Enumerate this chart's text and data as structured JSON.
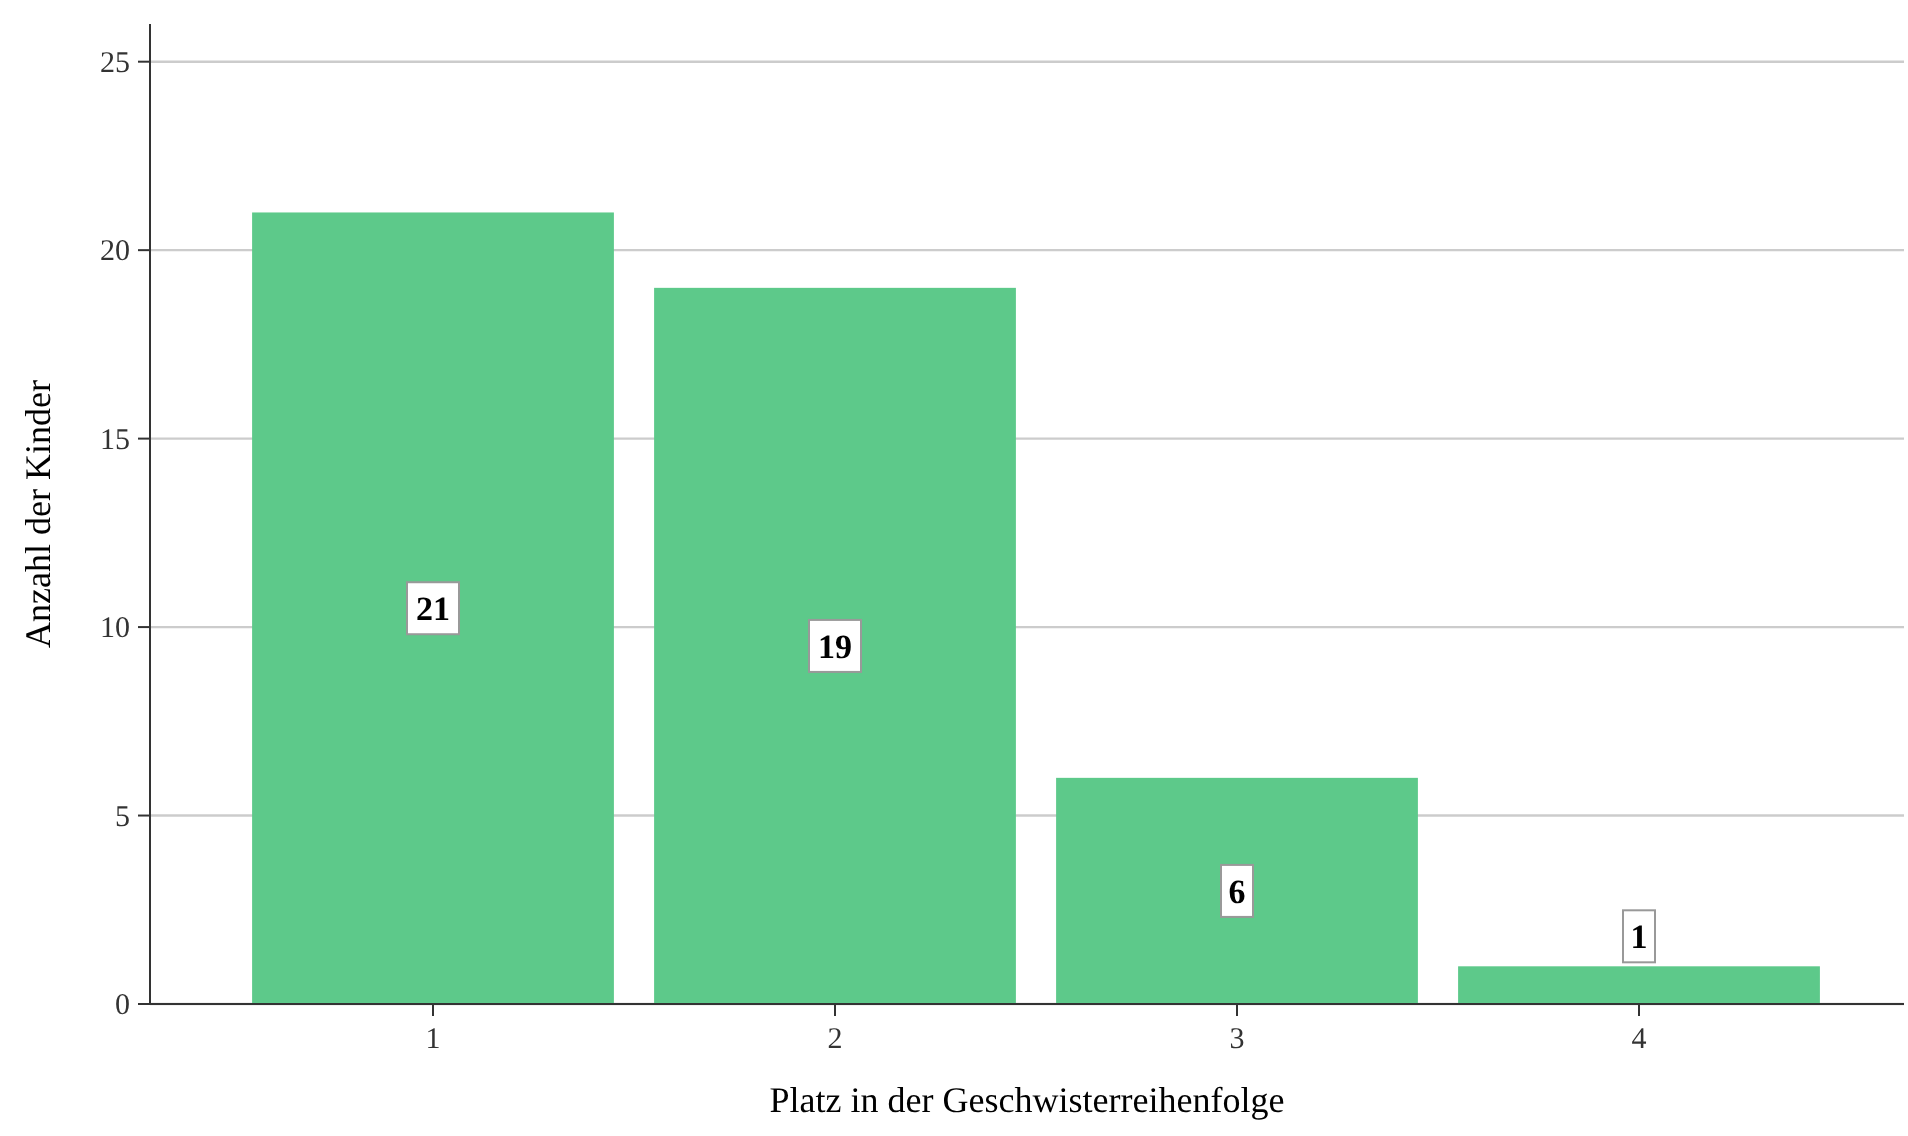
{
  "chart_data": {
    "type": "bar",
    "xlabel": "Platz in der Geschwisterreihenfolge",
    "ylabel": "Anzahl der Kinder",
    "categories": [
      "1",
      "2",
      "3",
      "4"
    ],
    "values": [
      21,
      19,
      6,
      1
    ],
    "color": "#5dc98a",
    "ylim": [
      0,
      26
    ],
    "yticks": [
      0,
      5,
      10,
      15,
      20,
      25
    ],
    "grid": "y",
    "data_labels": true
  }
}
